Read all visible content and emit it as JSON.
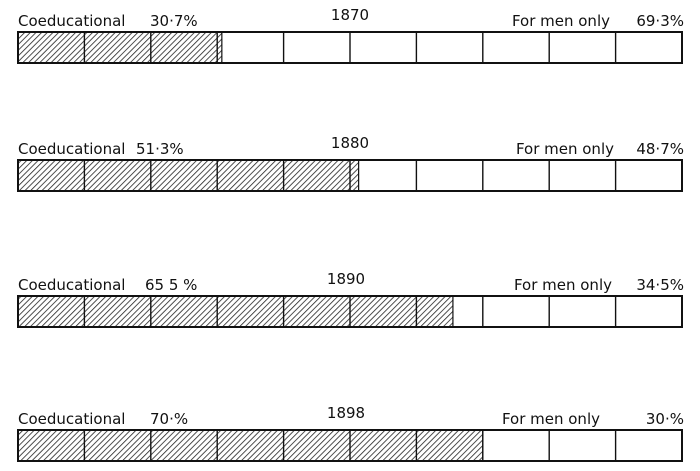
{
  "chart_data": {
    "type": "bar",
    "orientation": "horizontal-stacked-percent",
    "categories": [
      "1870",
      "1880",
      "1890",
      "1898"
    ],
    "series": [
      {
        "name": "Coeducational",
        "values": [
          30.7,
          51.3,
          65.5,
          70.0
        ],
        "labels": [
          "30·7%",
          "51·3%",
          "65 5 %",
          "70·%"
        ],
        "fill": "hatched"
      },
      {
        "name": "For men only",
        "values": [
          69.3,
          48.7,
          34.5,
          30.0
        ],
        "labels": [
          "69·3%",
          "48·7%",
          "34·5%",
          "30·%"
        ],
        "fill": "white"
      }
    ],
    "xlim": [
      0,
      100
    ],
    "grid_divisions": 10,
    "colors": {
      "ink": "#111111",
      "background": "#ffffff"
    }
  }
}
